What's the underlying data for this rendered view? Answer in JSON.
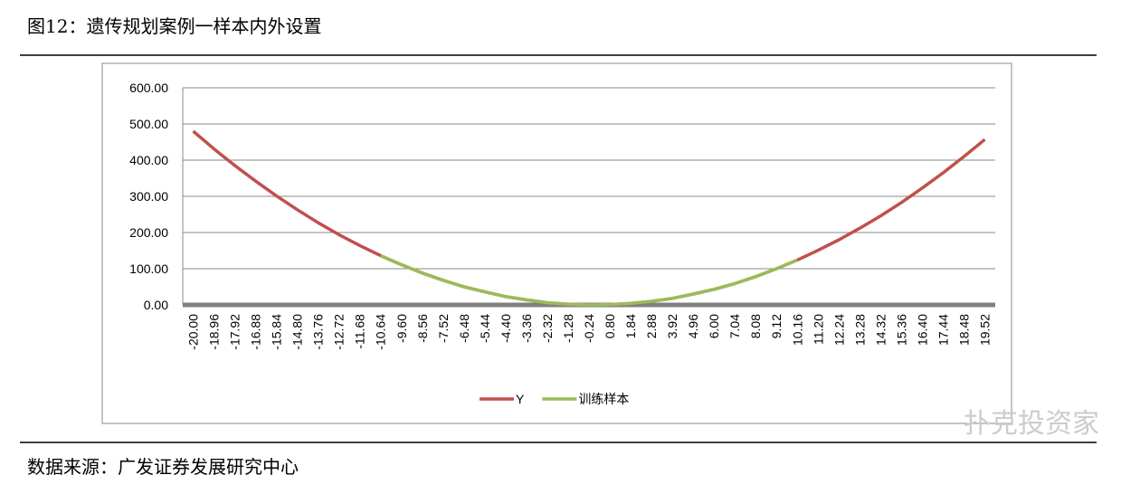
{
  "header": {
    "title": "图12：遗传规划案例一样本内外设置"
  },
  "chart_data": {
    "type": "line",
    "categories": [
      "-20.00",
      "-18.96",
      "-17.92",
      "-16.88",
      "-15.84",
      "-14.80",
      "-13.76",
      "-12.72",
      "-11.68",
      "-10.64",
      "-9.60",
      "-8.56",
      "-7.52",
      "-6.48",
      "-5.44",
      "-4.40",
      "-3.36",
      "-2.32",
      "-1.28",
      "-0.24",
      "0.80",
      "1.84",
      "2.88",
      "3.92",
      "4.96",
      "6.00",
      "7.04",
      "8.08",
      "9.12",
      "10.16",
      "11.20",
      "12.24",
      "13.28",
      "14.32",
      "15.36",
      "16.40",
      "17.44",
      "18.48",
      "19.52"
    ],
    "series": [
      {
        "name": "Y",
        "color": "#c0504d",
        "values": [
          480,
          431,
          385,
          342,
          301,
          263,
          227,
          194,
          164,
          136,
          111,
          88,
          68,
          50,
          36,
          23,
          14,
          6,
          2,
          0,
          1,
          4,
          10,
          18,
          30,
          43,
          59,
          78,
          100,
          124,
          151,
          180,
          212,
          246,
          283,
          323,
          365,
          410,
          457
        ]
      },
      {
        "name": "训练样本",
        "color": "#9bbb59",
        "values": [
          null,
          null,
          null,
          null,
          null,
          null,
          null,
          null,
          null,
          136,
          111,
          88,
          68,
          50,
          36,
          23,
          14,
          6,
          2,
          0,
          1,
          4,
          10,
          18,
          30,
          43,
          59,
          78,
          100,
          124,
          null,
          null,
          null,
          null,
          null,
          null,
          null,
          null,
          null
        ]
      }
    ],
    "ylim": [
      0,
      600
    ],
    "yticks": [
      {
        "value": 0,
        "label": "0.00"
      },
      {
        "value": 100,
        "label": "100.00"
      },
      {
        "value": 200,
        "label": "200.00"
      },
      {
        "value": 300,
        "label": "300.00"
      },
      {
        "value": 400,
        "label": "400.00"
      },
      {
        "value": 500,
        "label": "500.00"
      },
      {
        "value": 600,
        "label": "600.00"
      }
    ],
    "grid": true,
    "legend": "bottom"
  },
  "footer": {
    "source": "数据来源：广发证券发展研究中心"
  },
  "watermark": "扑克投资家"
}
